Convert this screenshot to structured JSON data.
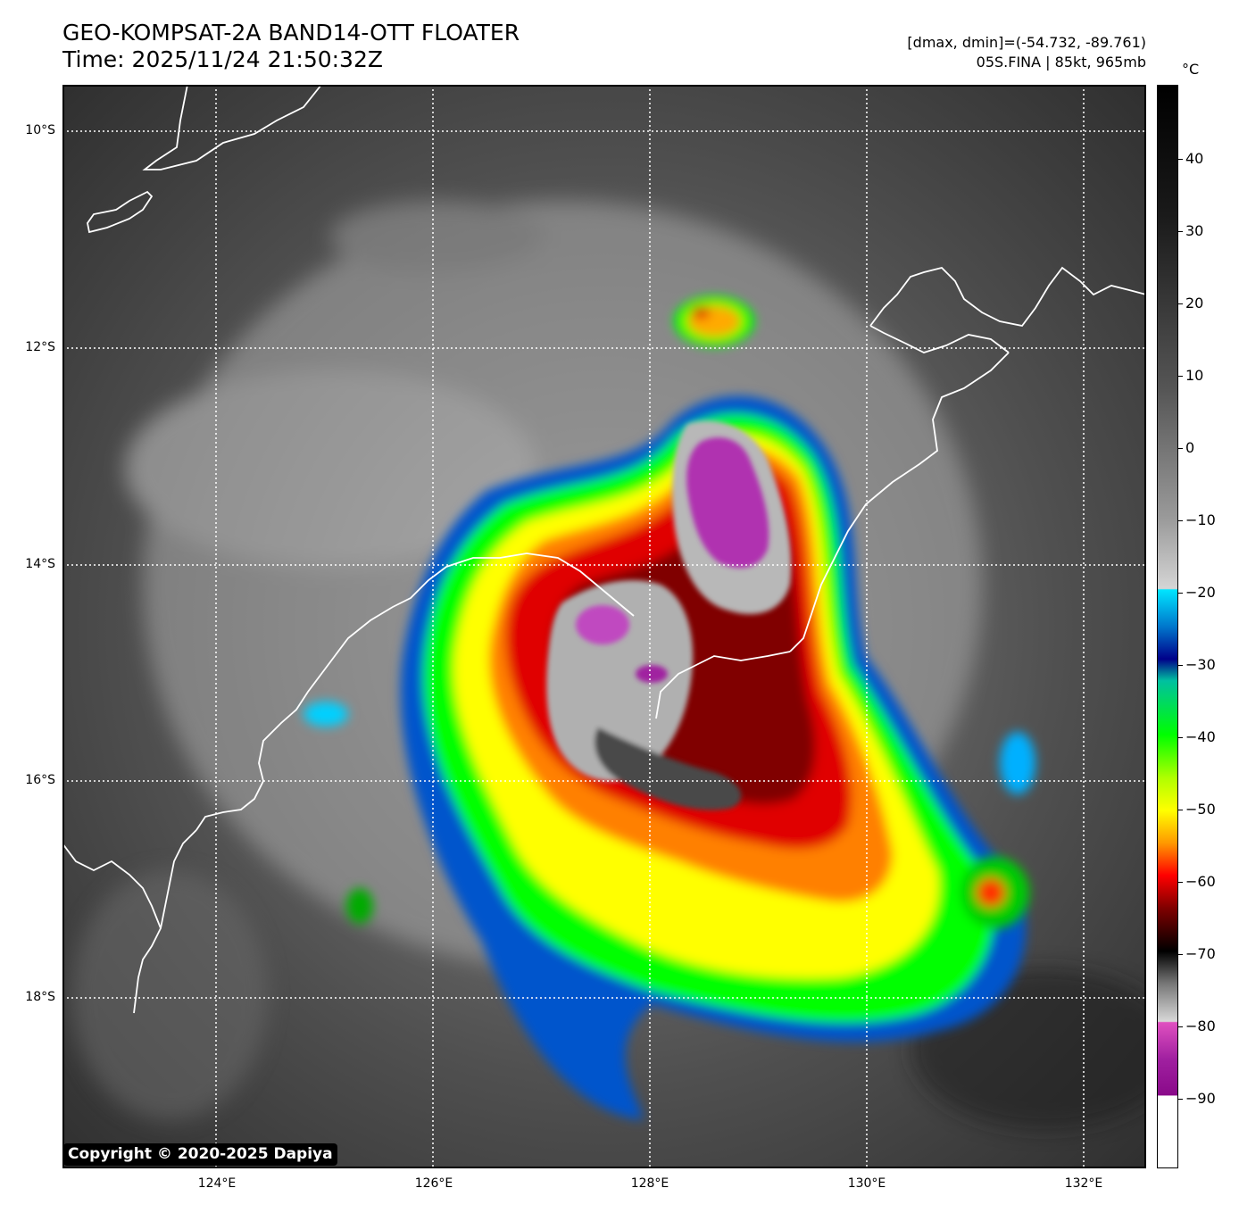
{
  "header": {
    "title_line1": "GEO-KOMPSAT-2A BAND14-OTT FLOATER",
    "title_line2": "Time: 2025/11/24 21:50:32Z",
    "range_text": "[dmax, dmin]=(-54.732, -89.761)",
    "storm_text": "05S.FINA | 85kt, 965mb"
  },
  "map": {
    "lat_labels": [
      "10°S",
      "12°S",
      "14°S",
      "16°S",
      "18°S"
    ],
    "lon_labels": [
      "124°E",
      "126°E",
      "128°E",
      "130°E",
      "132°E"
    ],
    "copyright": "Copyright © 2020-2025 Dapiya"
  },
  "colorbar": {
    "unit": "°C",
    "tick_labels": [
      "40",
      "30",
      "20",
      "10",
      "0",
      "−10",
      "−20",
      "−30",
      "−40",
      "−50",
      "−60",
      "−70",
      "−80",
      "−90"
    ]
  },
  "colors": {
    "background": "#ffffff",
    "cold_cloud_red": "#ff0000",
    "overshoot_magenta": "#c040c0",
    "coast": "#ffffff",
    "grid": "#ffffff"
  }
}
